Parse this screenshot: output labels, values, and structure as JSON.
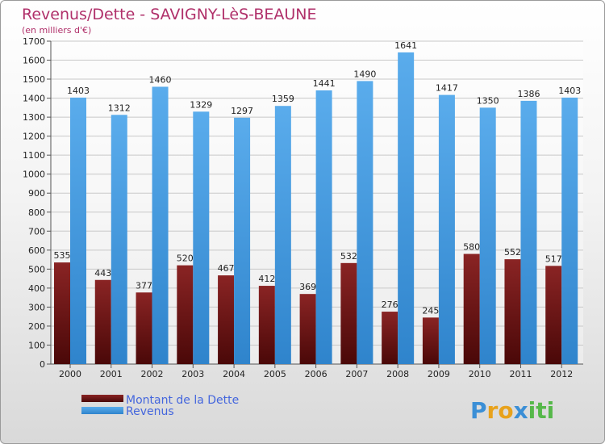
{
  "chart_data": {
    "type": "bar",
    "title": "Revenus/Dette - SAVIGNY-LèS-BEAUNE",
    "subtitle": "(en milliers d'€)",
    "categories": [
      "2000",
      "2001",
      "2002",
      "2003",
      "2004",
      "2005",
      "2006",
      "2007",
      "2008",
      "2009",
      "2010",
      "2011",
      "2012"
    ],
    "series": [
      {
        "name": "Montant de la Dette",
        "color": "#7a1a1a",
        "values": [
          535,
          443,
          377,
          520,
          467,
          412,
          369,
          532,
          276,
          245,
          580,
          552,
          517
        ],
        "labels": [
          "535",
          "443",
          "377",
          "520",
          "467",
          "412",
          "369",
          "532",
          "276",
          "245",
          "580",
          "552",
          "517"
        ]
      },
      {
        "name": "Revenus",
        "color": "#4a9ee0",
        "values": [
          1403,
          1312,
          1460,
          1329,
          1297,
          1359,
          1441,
          1490,
          1641,
          1417,
          1350,
          1386,
          1403
        ],
        "labels": [
          "1403",
          "1312",
          "1460",
          "1329",
          "1297",
          "1359",
          "1441",
          "1490",
          "1641",
          "1417",
          "1350",
          "1386",
          "1403"
        ]
      }
    ],
    "ylim": [
      0,
      1700
    ],
    "yticks": [
      "0",
      "100",
      "200",
      "300",
      "400",
      "500",
      "600",
      "700",
      "800",
      "900",
      "1000",
      "1100",
      "1200",
      "1300",
      "1400",
      "1500",
      "1600",
      "1700"
    ],
    "grid": true,
    "legend_position": "bottom-left"
  },
  "logo": {
    "letters": [
      "P",
      "r",
      "o",
      "x",
      "i",
      "t",
      "i"
    ],
    "colors": [
      "#3b8fd6",
      "#e8a21c",
      "#e8a21c",
      "#3b8fd6",
      "#56b84a",
      "#56b84a",
      "#56b84a"
    ]
  }
}
